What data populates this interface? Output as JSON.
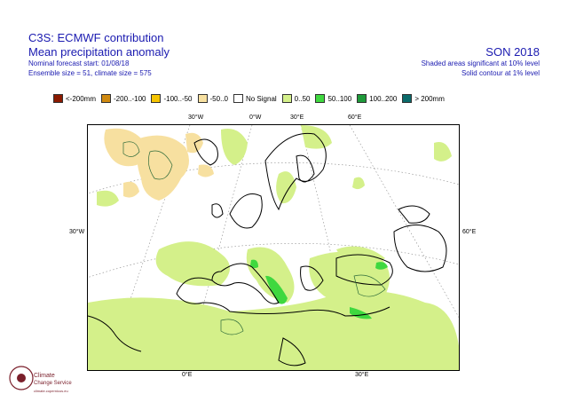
{
  "header": {
    "title": "C3S: ECMWF contribution",
    "subtitle": "Mean precipitation anomaly",
    "forecast_start": "Nominal forecast start: 01/08/18",
    "ensemble": "Ensemble size = 51, climate size = 575",
    "season": "SON 2018",
    "note_shaded": "Shaded areas significant at 10% level",
    "note_contour": "Solid contour at 1% level"
  },
  "legend": [
    {
      "label": "<-200mm",
      "color": "#8b1a00"
    },
    {
      "label": "-200..-100",
      "color": "#d08a10"
    },
    {
      "label": "-100..-50",
      "color": "#f5c400"
    },
    {
      "label": "-50..0",
      "color": "#f7e0a0"
    },
    {
      "label": "No Signal",
      "color": "#ffffff"
    },
    {
      "label": "0..50",
      "color": "#d4f08a"
    },
    {
      "label": "50..100",
      "color": "#3fd83f"
    },
    {
      "label": "100..200",
      "color": "#1e9a3a"
    },
    {
      "label": "> 200mm",
      "color": "#0a6a6a"
    }
  ],
  "axis_labels": {
    "lon_30w": "30°W",
    "lon_0": "0°W",
    "lon_30e_top": "30°E",
    "lon_60e_top": "60°E",
    "lat_left": "30°W",
    "right": "60°E",
    "bottom_0": "0°E",
    "bottom_30": "30°E"
  },
  "logo": {
    "line1": "Climate",
    "line2": "Change Service",
    "line3": "climate.copernicus.eu"
  }
}
